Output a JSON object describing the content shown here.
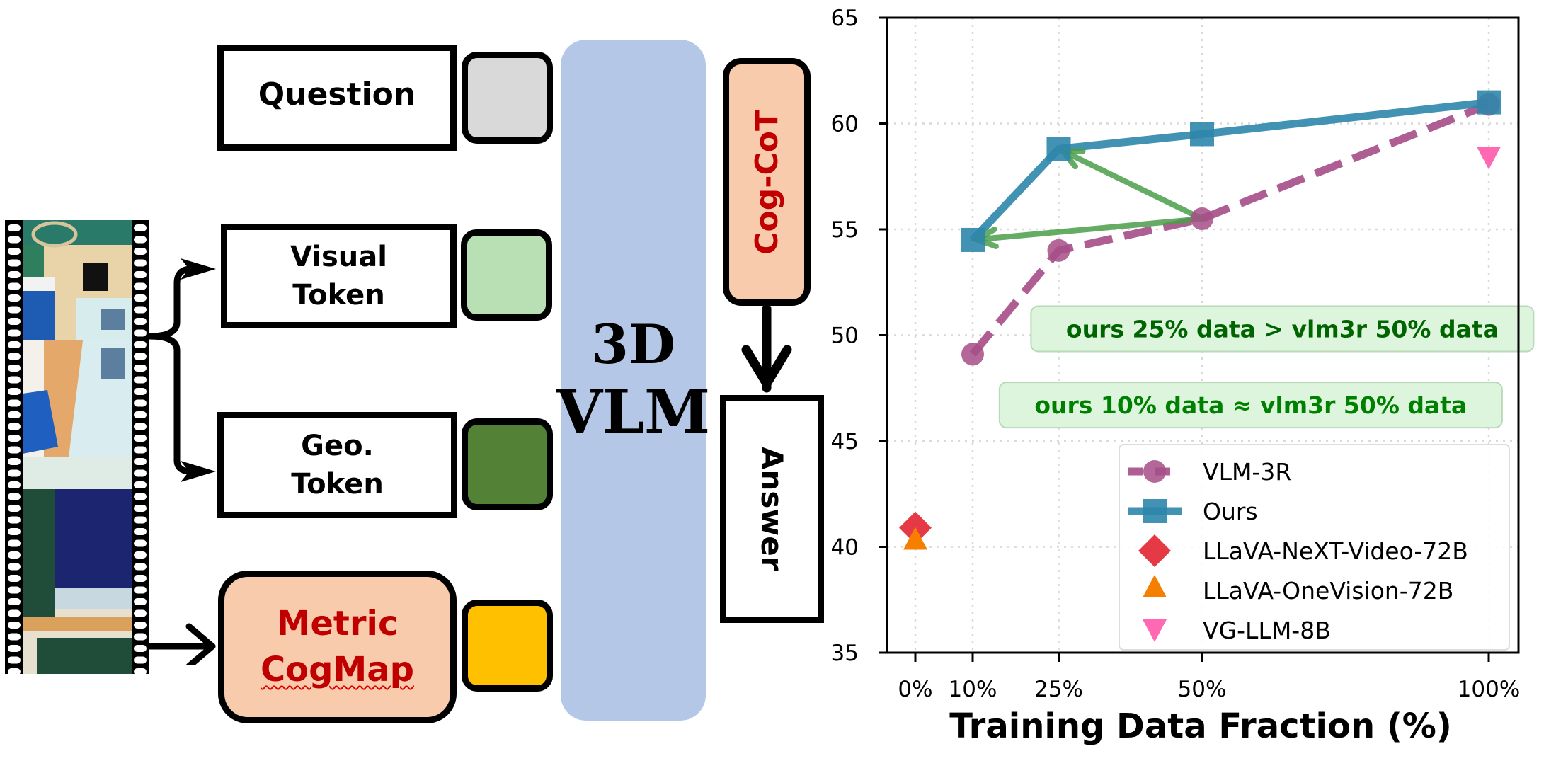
{
  "diagram": {
    "question_label": "Question",
    "visual_token_label_line1": "Visual",
    "visual_token_label_line2": "Token",
    "geo_token_label_line1": "Geo.",
    "geo_token_label_line2": "Token",
    "cogmap_label_line1": "Metric",
    "cogmap_label_line2": "CogMap",
    "vlm_label_line1": "3D",
    "vlm_label_line2": "VLM",
    "cogcot_label": "Cog-CoT",
    "answer_label": "Answer",
    "colors": {
      "question_token": "#d9d9d9",
      "visual_token": "#b9e0b5",
      "geo_token": "#538135",
      "cogmap_token": "#ffc000",
      "cogmap_box": "#f8cbad",
      "vlm": "#b4c7e7",
      "highlight_text": "#c00000"
    },
    "video_frames_icon": "film-strip"
  },
  "chart_data": {
    "type": "line",
    "title": "",
    "xlabel": "Training Data Fraction (%)",
    "ylabel": "",
    "xlim": [
      -5,
      105
    ],
    "ylim": [
      35,
      65
    ],
    "x_ticks": [
      0,
      10,
      25,
      50,
      100
    ],
    "x_tick_labels": [
      "0%",
      "10%",
      "25%",
      "50%",
      "100%"
    ],
    "y_ticks": [
      35,
      40,
      45,
      50,
      55,
      60,
      65
    ],
    "y_tick_labels": [
      "35",
      "40",
      "45",
      "50",
      "55",
      "60",
      "65"
    ],
    "grid": true,
    "legend_position": "lower-right",
    "series": [
      {
        "name": "VLM-3R",
        "style": "dashed",
        "marker": "circle",
        "color": "#a64d87",
        "x": [
          10,
          25,
          50,
          100
        ],
        "values": [
          49.1,
          54.0,
          55.5,
          60.9
        ]
      },
      {
        "name": "Ours",
        "style": "solid",
        "marker": "square",
        "color": "#2e86ab",
        "x": [
          10,
          25,
          50,
          100
        ],
        "values": [
          54.5,
          58.8,
          59.5,
          61.0
        ]
      },
      {
        "name": "LLaVA-NeXT-Video-72B",
        "style": "none",
        "marker": "diamond",
        "color": "#e63946",
        "x": [
          0
        ],
        "values": [
          40.9
        ]
      },
      {
        "name": "LLaVA-OneVision-72B",
        "style": "none",
        "marker": "triangle-up",
        "color": "#f77f00",
        "x": [
          0
        ],
        "values": [
          40.2
        ]
      },
      {
        "name": "VG-LLM-8B",
        "style": "none",
        "marker": "triangle-down",
        "color": "#ff69b4",
        "x": [
          100
        ],
        "values": [
          58.4
        ]
      }
    ],
    "annotations": [
      {
        "text": "ours 25% data > vlm3r 50% data",
        "x": 64,
        "y": 50.3,
        "color": "#006400",
        "box": "#dcf5dc"
      },
      {
        "text": "ours 10% data ≈ vlm3r 50% data",
        "x": 58.5,
        "y": 46.7,
        "color": "#008000",
        "box": "#dcf5dc"
      }
    ],
    "arrows": [
      {
        "from": [
          50,
          55.5
        ],
        "to": [
          25,
          58.8
        ],
        "color": "#4a9e4a"
      },
      {
        "from": [
          50,
          55.5
        ],
        "to": [
          10,
          54.5
        ],
        "color": "#4a9e4a"
      }
    ]
  }
}
